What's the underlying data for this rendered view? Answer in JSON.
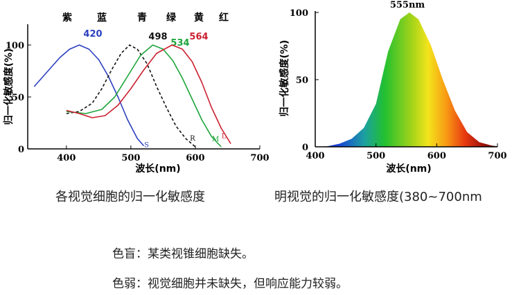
{
  "chart_data": [
    {
      "type": "line",
      "title": "",
      "xlabel": "波长(nm)",
      "ylabel": "归一化敏感度(%)",
      "xlim": [
        340,
        700
      ],
      "ylim": [
        0,
        120
      ],
      "x_ticks": [
        "400",
        "500",
        "600",
        "700"
      ],
      "y_ticks": [
        "0",
        "50",
        "100"
      ],
      "color_names": [
        "紫",
        "蓝",
        "青",
        "绿",
        "黄",
        "红"
      ],
      "series": [
        {
          "name": "S",
          "peak_label": "420",
          "color": "#2b3fbf",
          "dashed": false,
          "points": [
            [
              350,
              60
            ],
            [
              370,
              74
            ],
            [
              390,
              88
            ],
            [
              405,
              96
            ],
            [
              420,
              100
            ],
            [
              435,
              96
            ],
            [
              450,
              86
            ],
            [
              465,
              70
            ],
            [
              480,
              50
            ],
            [
              495,
              28
            ],
            [
              510,
              10
            ],
            [
              520,
              3
            ]
          ]
        },
        {
          "name": "R",
          "peak_label": "498",
          "color": "#111111",
          "dashed": true,
          "points": [
            [
              400,
              34
            ],
            [
              420,
              36
            ],
            [
              440,
              44
            ],
            [
              455,
              58
            ],
            [
              470,
              76
            ],
            [
              485,
              92
            ],
            [
              498,
              100
            ],
            [
              510,
              96
            ],
            [
              525,
              82
            ],
            [
              540,
              60
            ],
            [
              555,
              40
            ],
            [
              570,
              22
            ],
            [
              585,
              10
            ],
            [
              600,
              2
            ]
          ]
        },
        {
          "name": "M",
          "peak_label": "534",
          "color": "#1da43a",
          "dashed": false,
          "points": [
            [
              400,
              36
            ],
            [
              430,
              34
            ],
            [
              455,
              38
            ],
            [
              475,
              50
            ],
            [
              495,
              70
            ],
            [
              515,
              90
            ],
            [
              534,
              100
            ],
            [
              550,
              96
            ],
            [
              565,
              85
            ],
            [
              580,
              68
            ],
            [
              595,
              48
            ],
            [
              610,
              28
            ],
            [
              625,
              12
            ],
            [
              640,
              2
            ]
          ]
        },
        {
          "name": "L",
          "peak_label": "564",
          "color": "#cc2030",
          "dashed": false,
          "points": [
            [
              400,
              37
            ],
            [
              420,
              34
            ],
            [
              440,
              30
            ],
            [
              460,
              32
            ],
            [
              480,
              42
            ],
            [
              500,
              58
            ],
            [
              520,
              76
            ],
            [
              540,
              92
            ],
            [
              564,
              100
            ],
            [
              580,
              96
            ],
            [
              595,
              84
            ],
            [
              610,
              64
            ],
            [
              625,
              40
            ],
            [
              640,
              20
            ],
            [
              655,
              5
            ]
          ]
        }
      ]
    },
    {
      "type": "area",
      "title": "",
      "peak_label": "555nm",
      "xlabel": "波长(nm)",
      "ylabel": "归一化敏感度(%)",
      "xlim": [
        400,
        700
      ],
      "ylim": [
        0,
        100
      ],
      "x_ticks": [
        "400",
        "500",
        "600",
        "700"
      ],
      "y_ticks": [
        "0",
        "50",
        "100"
      ],
      "series": [
        {
          "name": "",
          "points": [
            [
              400,
              0
            ],
            [
              420,
              0.4
            ],
            [
              440,
              2.3
            ],
            [
              460,
              6
            ],
            [
              480,
              14
            ],
            [
              500,
              32
            ],
            [
              520,
              71
            ],
            [
              540,
              95
            ],
            [
              555,
              100
            ],
            [
              570,
              95
            ],
            [
              590,
              76
            ],
            [
              610,
              50
            ],
            [
              630,
              27
            ],
            [
              650,
              11
            ],
            [
              670,
              3.5
            ],
            [
              690,
              1
            ],
            [
              700,
              0.4
            ]
          ]
        }
      ]
    }
  ],
  "captions": {
    "left": "各视觉细胞的归一化敏感度",
    "right": "明视觉的归一化敏感度(380~700nm"
  },
  "notes": {
    "line1": "色盲：某类视锥细胞缺失。",
    "line2": "色弱：视觉细胞并未缺失，但响应能力较弱。"
  }
}
